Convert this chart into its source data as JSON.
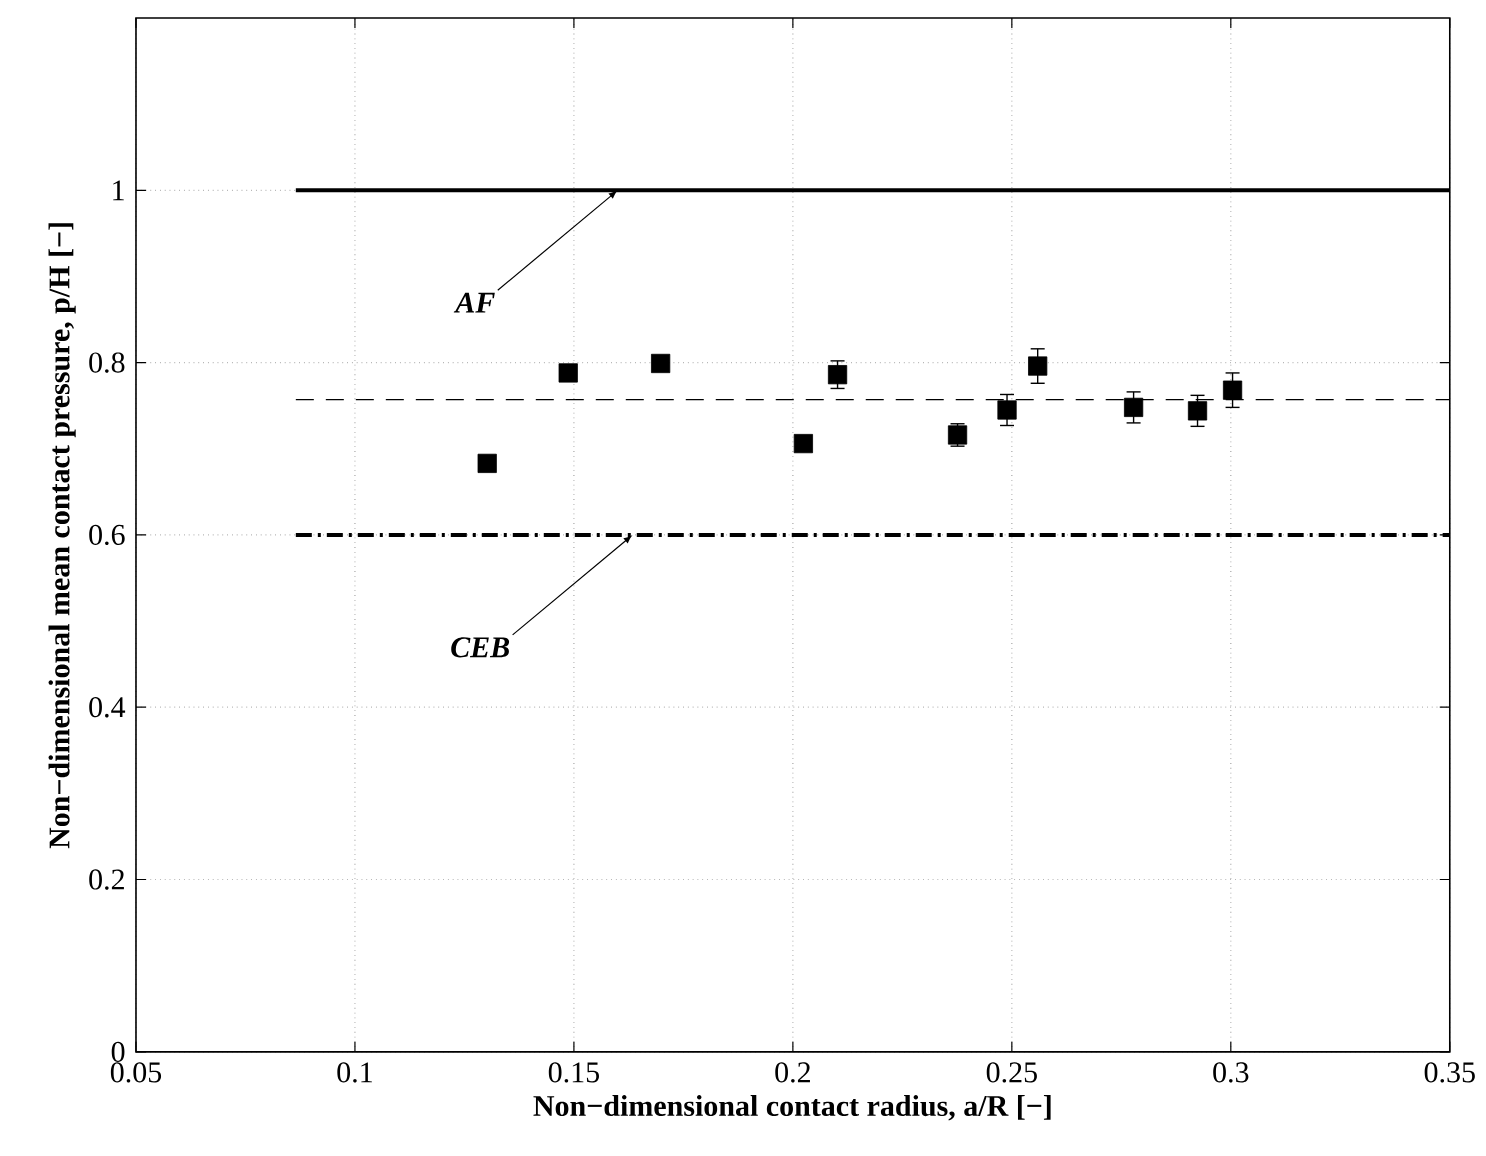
{
  "chart_data": {
    "type": "scatter",
    "xlabel": "Non−dimensional contact radius, a/R [−]",
    "ylabel": "Non−dimensional mean contact pressure, p/H [−]",
    "xlim": [
      0.05,
      0.35
    ],
    "xticks": [
      0.05,
      0.1,
      0.15,
      0.2,
      0.25,
      0.3,
      0.35
    ],
    "ylim": [
      0,
      1.2
    ],
    "yticks": [
      0,
      0.2,
      0.4,
      0.6,
      0.8,
      1
    ],
    "grid": true,
    "series": [
      {
        "color": "#000000",
        "marker": "square",
        "x": [
          0.1302,
          0.1487,
          0.1698,
          0.2024,
          0.2102,
          0.2376,
          0.2489,
          0.2559,
          0.2778,
          0.2924,
          0.3004
        ],
        "values": [
          0.683,
          0.788,
          0.799,
          0.706,
          0.786,
          0.716,
          0.745,
          0.796,
          0.748,
          0.744,
          0.768
        ],
        "errors": [
          null,
          null,
          null,
          null,
          0.016,
          0.013,
          0.018,
          0.02,
          0.018,
          0.018,
          0.02
        ]
      },
      {
        "type": "line",
        "color": "#000000",
        "line_style": "solid",
        "marker": "none",
        "x": [
          0.0865,
          0.35
        ],
        "values": [
          1,
          1
        ]
      },
      {
        "type": "line",
        "color": "#000000",
        "line_style": "dashed",
        "marker": "none",
        "x": [
          0.0865,
          0.35
        ],
        "values": [
          0.757,
          0.757
        ]
      },
      {
        "type": "line",
        "color": "#000000",
        "line_style": "dashdotted",
        "marker": "none",
        "x": [
          0.0865,
          0.35
        ],
        "values": [
          0.6,
          0.6
        ]
      }
    ],
    "annotations": [
      {
        "text": "AF",
        "x": 0.16,
        "y": 1
      },
      {
        "text": "CEB",
        "x": 0.1634,
        "y": 0.6
      }
    ]
  }
}
